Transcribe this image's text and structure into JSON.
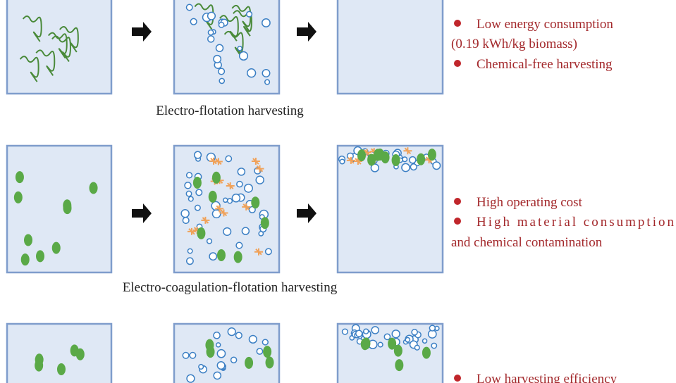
{
  "rows": [
    {
      "caption": "Electro-flotation harvesting",
      "notes": [
        "Low energy consumption",
        "(0.19 kWh/kg biomass)",
        "Chemical-free harvesting"
      ]
    },
    {
      "caption": "Electro-coagulation-flotation harvesting",
      "notes": [
        "High operating cost",
        "High material consumption",
        "and chemical contamination"
      ]
    },
    {
      "notes": [
        "Low harvesting efficiency"
      ]
    }
  ]
}
